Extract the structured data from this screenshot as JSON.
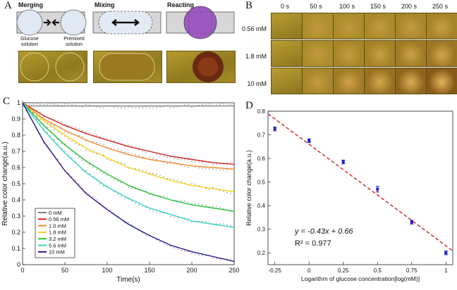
{
  "panels": {
    "a": {
      "letter": "A",
      "steps": [
        "Merging",
        "Mixing",
        "Reacting"
      ],
      "labels": {
        "glucose": "Glucose solution",
        "premixed": "Premixed solution"
      }
    },
    "b": {
      "letter": "B",
      "times": [
        "0 s",
        "50 s",
        "100 s",
        "150 s",
        "200 s",
        "250 s"
      ],
      "concentrations": [
        "0.56 mM",
        "1.8 mM",
        "10 mM"
      ]
    },
    "c": {
      "letter": "C"
    },
    "d": {
      "letter": "D",
      "equation": "y = -0.43x + 0.66",
      "r2": "R² = 0.977"
    }
  },
  "chart_data": [
    {
      "type": "line",
      "panel": "C",
      "xlabel": "Time(s)",
      "ylabel": "Relative color change(a.u.)",
      "xlim": [
        0,
        250
      ],
      "ylim": [
        0,
        1
      ],
      "xticks": [
        0,
        50,
        100,
        150,
        200,
        250
      ],
      "yticks": [
        0,
        0.1,
        0.2,
        0.3,
        0.4,
        0.5,
        0.6,
        0.7,
        0.8,
        0.9,
        1
      ],
      "x": [
        0,
        25,
        50,
        75,
        100,
        125,
        150,
        175,
        200,
        225,
        250
      ],
      "series": [
        {
          "name": "0 mM",
          "color": "#808080",
          "values": [
            0.98,
            0.98,
            0.98,
            0.98,
            0.98,
            0.98,
            0.98,
            0.98,
            0.98,
            0.98,
            0.98
          ]
        },
        {
          "name": "0.56 mM",
          "color": "#d62020",
          "values": [
            1.0,
            0.92,
            0.86,
            0.81,
            0.77,
            0.73,
            0.7,
            0.67,
            0.65,
            0.63,
            0.62
          ]
        },
        {
          "name": "1.0 mM",
          "color": "#f08a2a",
          "values": [
            1.0,
            0.9,
            0.83,
            0.77,
            0.72,
            0.68,
            0.65,
            0.63,
            0.61,
            0.6,
            0.59
          ]
        },
        {
          "name": "1.8 mM",
          "color": "#f2d21c",
          "values": [
            1.0,
            0.89,
            0.8,
            0.72,
            0.66,
            0.6,
            0.56,
            0.52,
            0.49,
            0.47,
            0.45
          ]
        },
        {
          "name": "3.2 mM",
          "color": "#22c232",
          "values": [
            1.0,
            0.86,
            0.74,
            0.64,
            0.56,
            0.49,
            0.44,
            0.4,
            0.37,
            0.35,
            0.33
          ]
        },
        {
          "name": "5.6 mM",
          "color": "#2fd3c6",
          "values": [
            1.0,
            0.83,
            0.69,
            0.57,
            0.48,
            0.41,
            0.35,
            0.31,
            0.27,
            0.25,
            0.23
          ]
        },
        {
          "name": "10 mM",
          "color": "#1a1a8c",
          "values": [
            1.0,
            0.76,
            0.58,
            0.44,
            0.34,
            0.25,
            0.18,
            0.12,
            0.08,
            0.05,
            0.02
          ]
        }
      ]
    },
    {
      "type": "scatter",
      "panel": "D",
      "xlabel": "Logarithm of glucose concentration[log(mM)]",
      "ylabel": "Relative color change(a.u.)",
      "xlim": [
        -0.3,
        1.05
      ],
      "ylim": [
        0.15,
        0.8
      ],
      "xticks": [
        -0.25,
        0,
        0.25,
        0.5,
        0.75,
        1
      ],
      "yticks": [
        0.2,
        0.3,
        0.4,
        0.5,
        0.6,
        0.7,
        0.8
      ],
      "points": [
        {
          "x": -0.25,
          "y": 0.725,
          "err": 0.008
        },
        {
          "x": 0.0,
          "y": 0.675,
          "err": 0.008
        },
        {
          "x": 0.25,
          "y": 0.585,
          "err": 0.008
        },
        {
          "x": 0.5,
          "y": 0.47,
          "err": 0.012
        },
        {
          "x": 0.75,
          "y": 0.33,
          "err": 0.008
        },
        {
          "x": 1.0,
          "y": 0.2,
          "err": 0.008
        }
      ],
      "fit": {
        "slope": -0.43,
        "intercept": 0.66,
        "color": "#d62020"
      },
      "marker_color": "#1a22c8"
    }
  ]
}
